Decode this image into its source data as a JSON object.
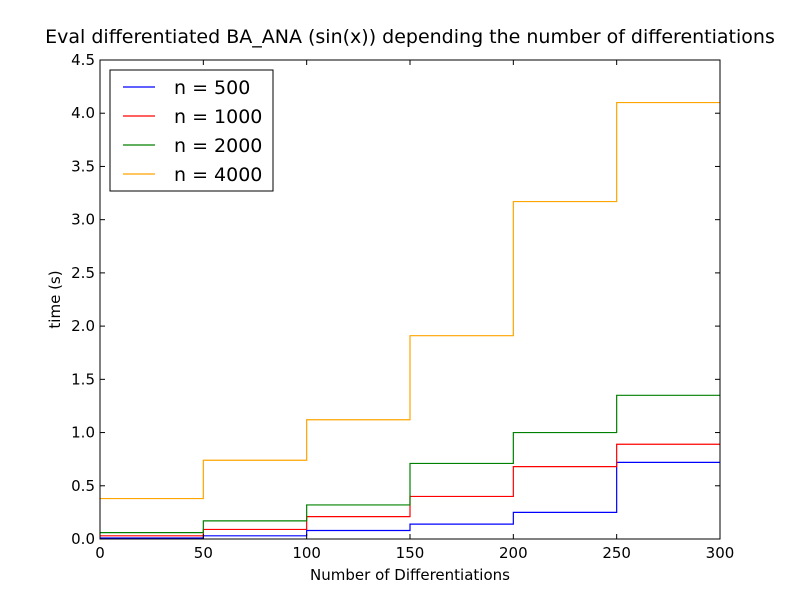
{
  "chart_data": {
    "type": "line",
    "step": "post",
    "title": "Eval differentiated BA_ANA (sin(x)) depending the number of differentiations",
    "xlabel": "Number of Differentiations",
    "ylabel": "time (s)",
    "xlim": [
      0,
      300
    ],
    "ylim": [
      0,
      4.5
    ],
    "xticks": [
      0,
      50,
      100,
      150,
      200,
      250,
      300
    ],
    "yticks": [
      0.0,
      0.5,
      1.0,
      1.5,
      2.0,
      2.5,
      3.0,
      3.5,
      4.0,
      4.5
    ],
    "grid": false,
    "legend_position": "top-left",
    "x": [
      0,
      50,
      100,
      150,
      200,
      250,
      300
    ],
    "series": [
      {
        "name": "n = 500",
        "color": "#0000ff",
        "values": [
          0.01,
          0.03,
          0.08,
          0.14,
          0.25,
          0.72,
          0.72
        ]
      },
      {
        "name": "n = 1000",
        "color": "#ff0000",
        "values": [
          0.03,
          0.09,
          0.21,
          0.4,
          0.68,
          0.89,
          0.89
        ]
      },
      {
        "name": "n = 2000",
        "color": "#008000",
        "values": [
          0.06,
          0.17,
          0.32,
          0.71,
          1.0,
          1.35,
          1.35
        ]
      },
      {
        "name": "n = 4000",
        "color": "#ffa500",
        "values": [
          0.38,
          0.74,
          1.12,
          1.91,
          3.17,
          4.1,
          4.1
        ]
      }
    ]
  }
}
